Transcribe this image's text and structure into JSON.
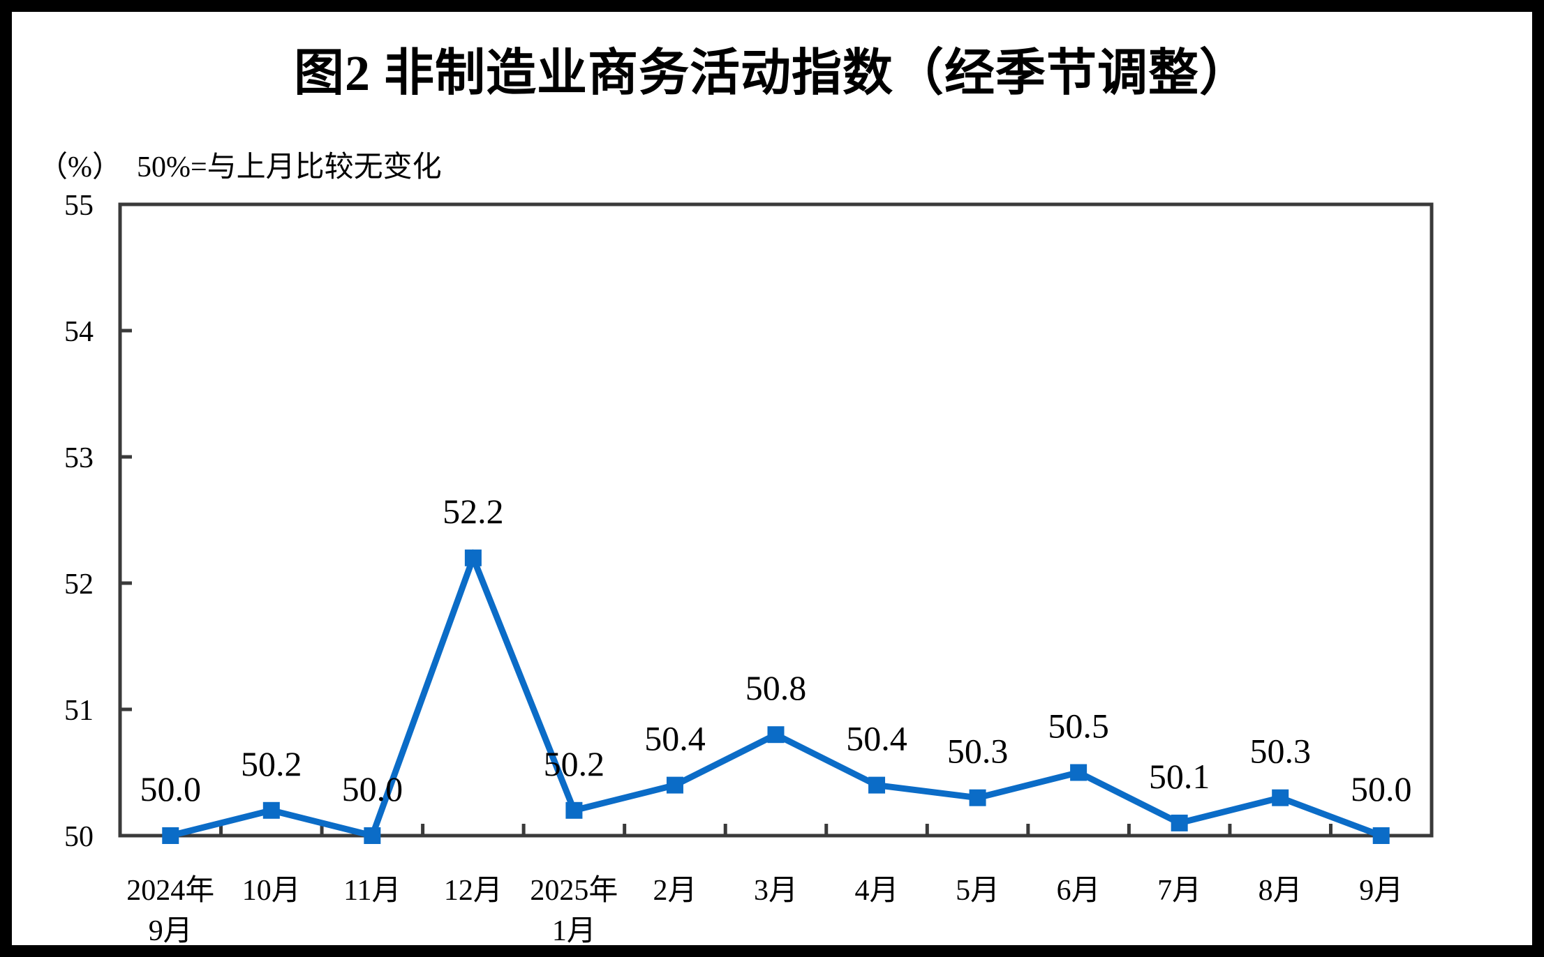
{
  "figure": {
    "title": "图2 非制造业商务活动指数（经季节调整）",
    "unit_label": "（%）",
    "reference_note": "50%=与上月比较无变化"
  },
  "chart_data": {
    "type": "line",
    "title": "图2 非制造业商务活动指数（经季节调整）",
    "subtitle": "（%） 50%=与上月比较无变化",
    "categories": [
      [
        "2024年",
        "9月"
      ],
      [
        "10月"
      ],
      [
        "11月"
      ],
      [
        "12月"
      ],
      [
        "2025年",
        "1月"
      ],
      [
        "2月"
      ],
      [
        "3月"
      ],
      [
        "4月"
      ],
      [
        "5月"
      ],
      [
        "6月"
      ],
      [
        "7月"
      ],
      [
        "8月"
      ],
      [
        "9月"
      ]
    ],
    "series": [
      {
        "name": "",
        "values": [
          50.0,
          50.2,
          50.0,
          52.2,
          50.2,
          50.4,
          50.8,
          50.4,
          50.3,
          50.5,
          50.1,
          50.3,
          50.0
        ],
        "labels": [
          "50.0",
          "50.2",
          "50.0",
          "52.2",
          "50.2",
          "50.4",
          "50.8",
          "50.4",
          "50.3",
          "50.5",
          "50.1",
          "50.3",
          "50.0"
        ]
      }
    ],
    "xlabel": "",
    "ylabel": "（%）",
    "ylim": [
      50,
      55
    ],
    "yticks": [
      50,
      51,
      52,
      53,
      54,
      55
    ],
    "grid": false,
    "legend": "none",
    "colors": {
      "line": "#0b6cc7",
      "marker": "#0b6cc7",
      "axis": "#3a3a3a",
      "text": "#000000",
      "background": "#ffffff",
      "page_border": "#000000"
    },
    "marker_shape": "square"
  }
}
